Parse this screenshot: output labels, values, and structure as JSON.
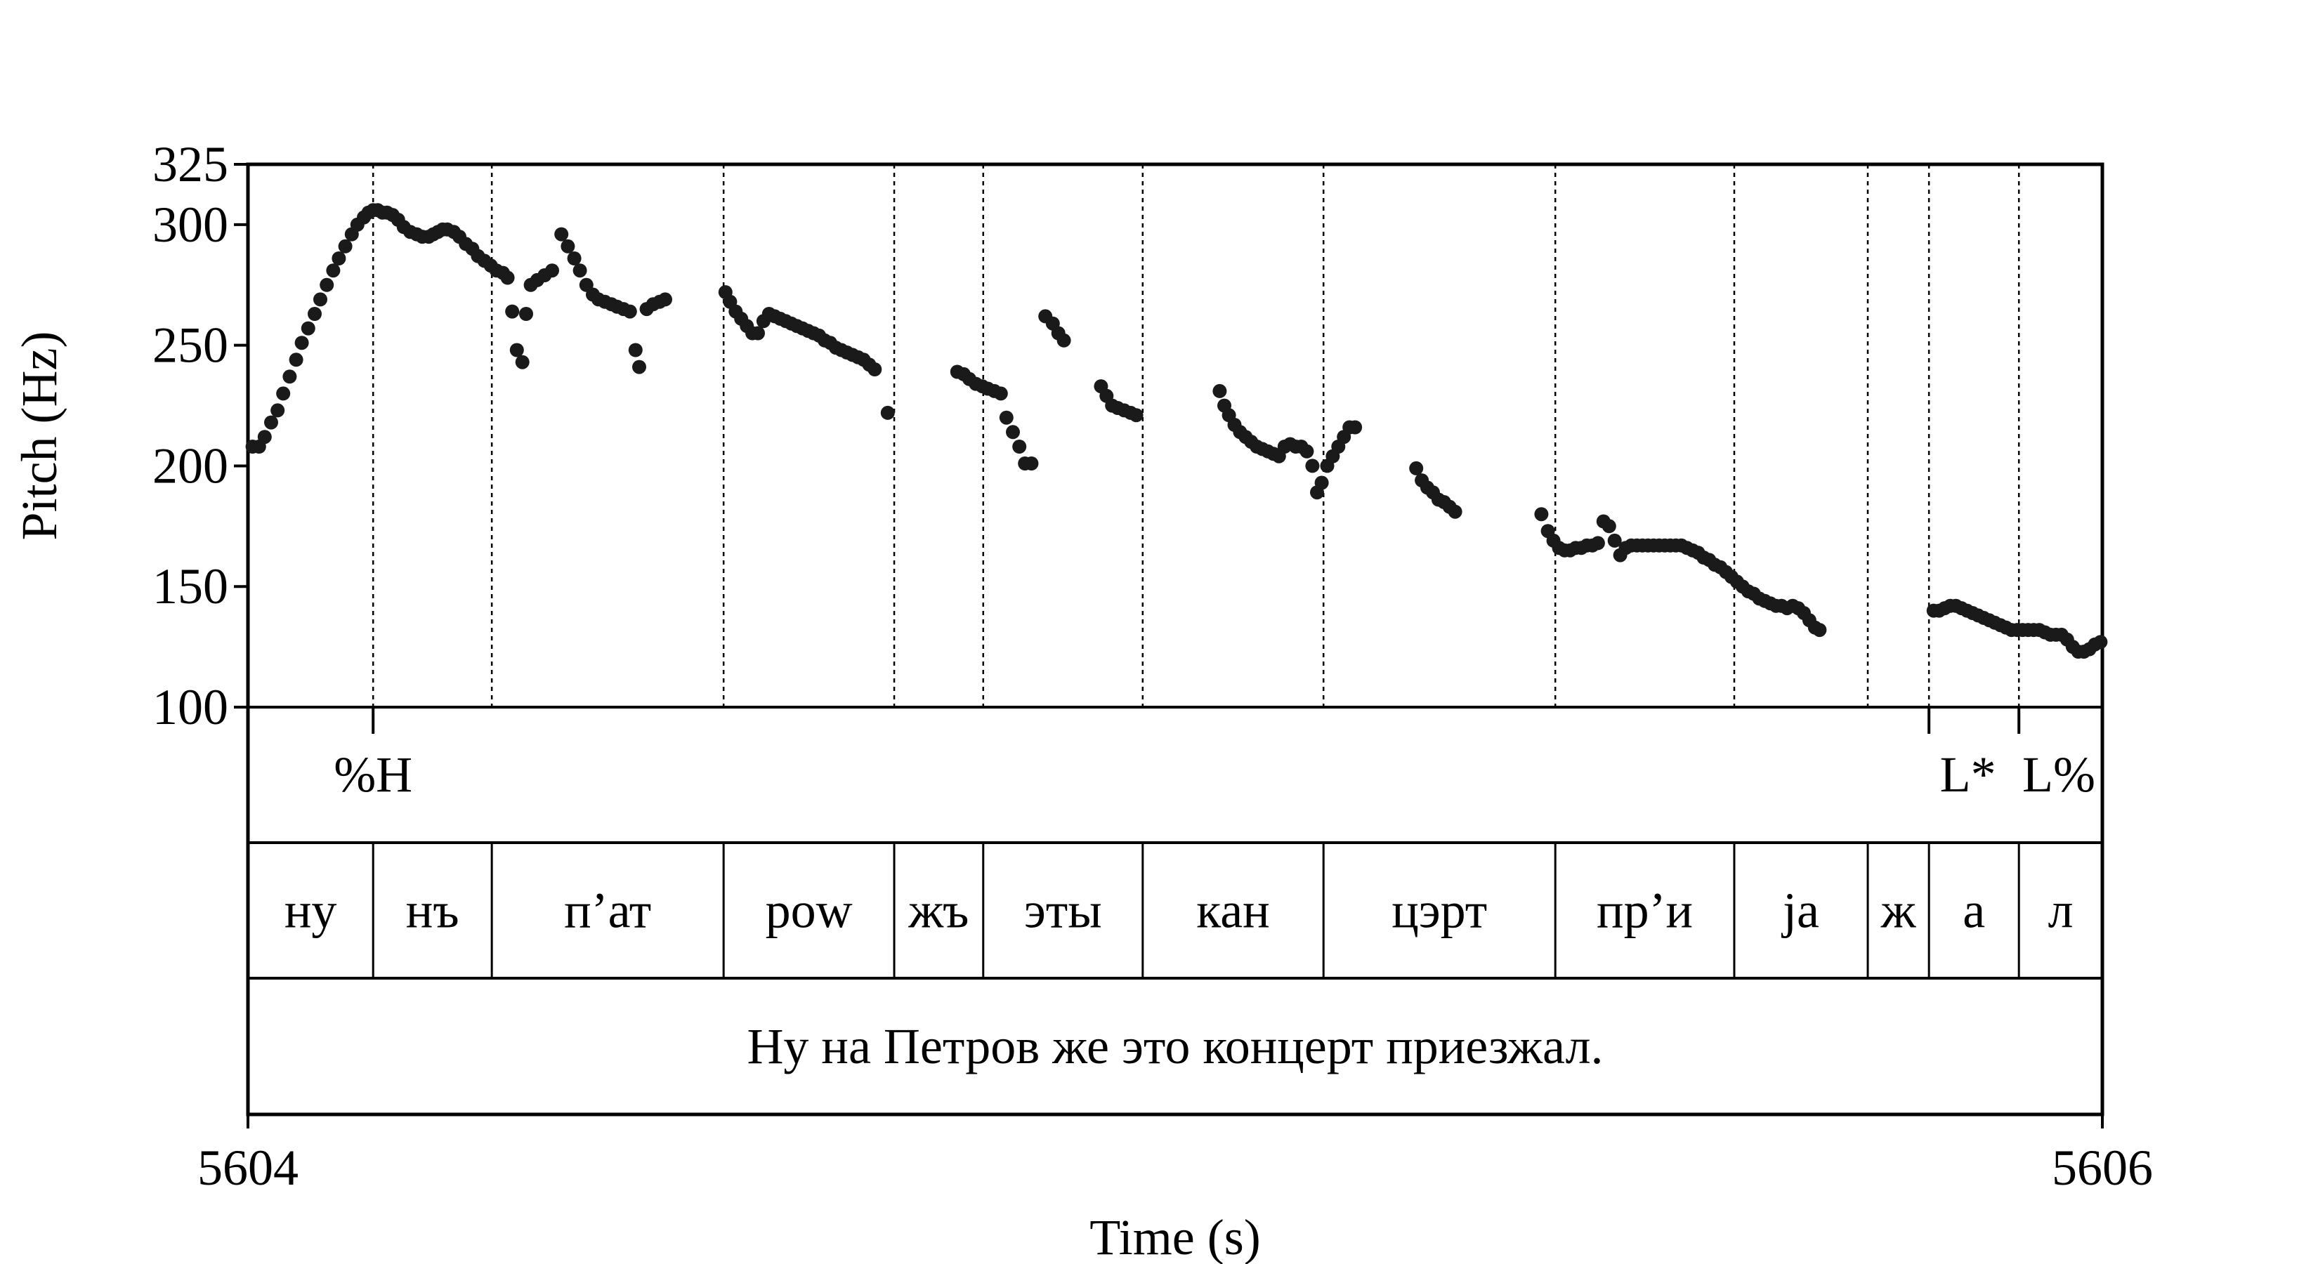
{
  "chart_data": {
    "type": "scatter",
    "xlabel": "Time (s)",
    "ylabel": "Pitch (Hz)",
    "xlim": [
      5604,
      5606
    ],
    "ylim": [
      100,
      325
    ],
    "x_ticks": [
      "5604",
      "5606"
    ],
    "y_ticks": [
      100,
      150,
      200,
      250,
      300,
      325
    ],
    "y_tick_labels": [
      "100",
      "150",
      "200",
      "250",
      "300",
      "325"
    ],
    "grid": false,
    "series": [
      {
        "points": [
          [
            5604.005,
            208
          ],
          [
            5604.012,
            208
          ],
          [
            5604.018,
            212
          ],
          [
            5604.025,
            218
          ],
          [
            5604.032,
            223
          ],
          [
            5604.038,
            230
          ],
          [
            5604.045,
            237
          ],
          [
            5604.052,
            244
          ],
          [
            5604.058,
            251
          ],
          [
            5604.065,
            257
          ],
          [
            5604.072,
            263
          ],
          [
            5604.078,
            269
          ],
          [
            5604.085,
            275
          ],
          [
            5604.092,
            281
          ],
          [
            5604.098,
            286
          ],
          [
            5604.105,
            291
          ],
          [
            5604.112,
            296
          ],
          [
            5604.118,
            300
          ],
          [
            5604.125,
            303
          ],
          [
            5604.13,
            305
          ],
          [
            5604.135,
            306
          ],
          [
            5604.14,
            306
          ],
          [
            5604.145,
            305
          ],
          [
            5604.15,
            305
          ],
          [
            5604.156,
            304
          ],
          [
            5604.162,
            302
          ],
          [
            5604.168,
            299
          ],
          [
            5604.175,
            297
          ],
          [
            5604.182,
            296
          ],
          [
            5604.188,
            295
          ],
          [
            5604.195,
            295
          ],
          [
            5604.2,
            296
          ],
          [
            5604.205,
            297
          ],
          [
            5604.21,
            298
          ],
          [
            5604.215,
            298
          ],
          [
            5604.222,
            297
          ],
          [
            5604.228,
            295
          ],
          [
            5604.235,
            292
          ],
          [
            5604.242,
            290
          ],
          [
            5604.248,
            287
          ],
          [
            5604.255,
            285
          ],
          [
            5604.262,
            283
          ],
          [
            5604.268,
            281
          ],
          [
            5604.275,
            280
          ],
          [
            5604.28,
            278
          ],
          [
            5604.285,
            264
          ],
          [
            5604.29,
            248
          ],
          [
            5604.296,
            243
          ],
          [
            5604.3,
            263
          ],
          [
            5604.305,
            275
          ],
          [
            5604.312,
            277
          ],
          [
            5604.32,
            279
          ],
          [
            5604.328,
            281
          ],
          [
            5604.338,
            296
          ],
          [
            5604.345,
            291
          ],
          [
            5604.352,
            286
          ],
          [
            5604.358,
            281
          ],
          [
            5604.365,
            275
          ],
          [
            5604.372,
            271
          ],
          [
            5604.378,
            269
          ],
          [
            5604.385,
            268
          ],
          [
            5604.392,
            267
          ],
          [
            5604.398,
            266
          ],
          [
            5604.405,
            265
          ],
          [
            5604.412,
            264
          ],
          [
            5604.418,
            248
          ],
          [
            5604.422,
            241
          ],
          [
            5604.43,
            265
          ],
          [
            5604.437,
            267
          ],
          [
            5604.444,
            268
          ],
          [
            5604.45,
            269
          ],
          [
            5604.515,
            272
          ],
          [
            5604.52,
            268
          ],
          [
            5604.526,
            264
          ],
          [
            5604.532,
            261
          ],
          [
            5604.538,
            258
          ],
          [
            5604.544,
            255
          ],
          [
            5604.55,
            255
          ],
          [
            5604.556,
            260
          ],
          [
            5604.562,
            263
          ],
          [
            5604.568,
            262
          ],
          [
            5604.574,
            261
          ],
          [
            5604.58,
            260
          ],
          [
            5604.586,
            259
          ],
          [
            5604.592,
            258
          ],
          [
            5604.598,
            257
          ],
          [
            5604.604,
            256
          ],
          [
            5604.61,
            255
          ],
          [
            5604.616,
            254
          ],
          [
            5604.622,
            252
          ],
          [
            5604.628,
            251
          ],
          [
            5604.634,
            249
          ],
          [
            5604.64,
            248
          ],
          [
            5604.646,
            247
          ],
          [
            5604.652,
            246
          ],
          [
            5604.658,
            245
          ],
          [
            5604.664,
            244
          ],
          [
            5604.67,
            242
          ],
          [
            5604.676,
            240
          ],
          [
            5604.69,
            222
          ],
          [
            5604.765,
            239
          ],
          [
            5604.772,
            238
          ],
          [
            5604.778,
            236
          ],
          [
            5604.785,
            234
          ],
          [
            5604.792,
            233
          ],
          [
            5604.798,
            232
          ],
          [
            5604.805,
            231
          ],
          [
            5604.812,
            230
          ],
          [
            5604.818,
            220
          ],
          [
            5604.825,
            214
          ],
          [
            5604.832,
            208
          ],
          [
            5604.838,
            201
          ],
          [
            5604.845,
            201
          ],
          [
            5604.86,
            262
          ],
          [
            5604.868,
            259
          ],
          [
            5604.874,
            255
          ],
          [
            5604.88,
            252
          ],
          [
            5604.92,
            233
          ],
          [
            5604.926,
            229
          ],
          [
            5604.932,
            225
          ],
          [
            5604.938,
            224
          ],
          [
            5604.945,
            223
          ],
          [
            5604.952,
            222
          ],
          [
            5604.958,
            221
          ],
          [
            5605.048,
            231
          ],
          [
            5605.053,
            225
          ],
          [
            5605.058,
            221
          ],
          [
            5605.064,
            217
          ],
          [
            5605.07,
            214
          ],
          [
            5605.076,
            212
          ],
          [
            5605.082,
            210
          ],
          [
            5605.088,
            208
          ],
          [
            5605.094,
            207
          ],
          [
            5605.1,
            206
          ],
          [
            5605.106,
            205
          ],
          [
            5605.112,
            204
          ],
          [
            5605.118,
            208
          ],
          [
            5605.124,
            209
          ],
          [
            5605.13,
            208
          ],
          [
            5605.136,
            208
          ],
          [
            5605.142,
            206
          ],
          [
            5605.148,
            200
          ],
          [
            5605.153,
            189
          ],
          [
            5605.158,
            193
          ],
          [
            5605.164,
            200
          ],
          [
            5605.17,
            204
          ],
          [
            5605.176,
            208
          ],
          [
            5605.182,
            212
          ],
          [
            5605.188,
            216
          ],
          [
            5605.194,
            216
          ],
          [
            5605.26,
            199
          ],
          [
            5605.266,
            194
          ],
          [
            5605.272,
            191
          ],
          [
            5605.278,
            189
          ],
          [
            5605.284,
            186
          ],
          [
            5605.29,
            185
          ],
          [
            5605.296,
            183
          ],
          [
            5605.302,
            181
          ],
          [
            5605.395,
            180
          ],
          [
            5605.402,
            173
          ],
          [
            5605.408,
            169
          ],
          [
            5605.414,
            166
          ],
          [
            5605.42,
            165
          ],
          [
            5605.426,
            165
          ],
          [
            5605.432,
            166
          ],
          [
            5605.438,
            166
          ],
          [
            5605.444,
            167
          ],
          [
            5605.45,
            167
          ],
          [
            5605.456,
            168
          ],
          [
            5605.462,
            177
          ],
          [
            5605.468,
            175
          ],
          [
            5605.474,
            169
          ],
          [
            5605.48,
            163
          ],
          [
            5605.486,
            166
          ],
          [
            5605.492,
            167
          ],
          [
            5605.498,
            167
          ],
          [
            5605.504,
            167
          ],
          [
            5605.51,
            167
          ],
          [
            5605.516,
            167
          ],
          [
            5605.522,
            167
          ],
          [
            5605.528,
            167
          ],
          [
            5605.534,
            167
          ],
          [
            5605.54,
            167
          ],
          [
            5605.546,
            167
          ],
          [
            5605.552,
            166
          ],
          [
            5605.558,
            165
          ],
          [
            5605.564,
            164
          ],
          [
            5605.57,
            162
          ],
          [
            5605.576,
            161
          ],
          [
            5605.582,
            159
          ],
          [
            5605.588,
            158
          ],
          [
            5605.594,
            156
          ],
          [
            5605.6,
            154
          ],
          [
            5605.606,
            152
          ],
          [
            5605.612,
            150
          ],
          [
            5605.618,
            148
          ],
          [
            5605.624,
            147
          ],
          [
            5605.63,
            145
          ],
          [
            5605.636,
            144
          ],
          [
            5605.642,
            143
          ],
          [
            5605.648,
            142
          ],
          [
            5605.654,
            142
          ],
          [
            5605.66,
            141
          ],
          [
            5605.666,
            142
          ],
          [
            5605.672,
            141
          ],
          [
            5605.678,
            139
          ],
          [
            5605.684,
            136
          ],
          [
            5605.69,
            133
          ],
          [
            5605.695,
            132
          ],
          [
            5605.818,
            140
          ],
          [
            5605.824,
            140
          ],
          [
            5605.83,
            141
          ],
          [
            5605.836,
            142
          ],
          [
            5605.842,
            142
          ],
          [
            5605.848,
            141
          ],
          [
            5605.854,
            140
          ],
          [
            5605.86,
            139
          ],
          [
            5605.866,
            138
          ],
          [
            5605.872,
            137
          ],
          [
            5605.878,
            136
          ],
          [
            5605.884,
            135
          ],
          [
            5605.89,
            134
          ],
          [
            5605.896,
            133
          ],
          [
            5605.902,
            132
          ],
          [
            5605.908,
            132
          ],
          [
            5605.914,
            132
          ],
          [
            5605.92,
            132
          ],
          [
            5605.926,
            132
          ],
          [
            5605.932,
            132
          ],
          [
            5605.938,
            131
          ],
          [
            5605.944,
            130
          ],
          [
            5605.95,
            130
          ],
          [
            5605.956,
            130
          ],
          [
            5605.962,
            128
          ],
          [
            5605.968,
            125
          ],
          [
            5605.974,
            123
          ],
          [
            5605.98,
            123
          ],
          [
            5605.986,
            124
          ],
          [
            5605.992,
            126
          ],
          [
            5605.998,
            127
          ]
        ]
      }
    ],
    "tiers": {
      "tones": [
        {
          "time": 5604.135,
          "label": "%H"
        },
        {
          "time": 5605.855,
          "label": "L*"
        },
        {
          "time": 5605.953,
          "label": "L%"
        }
      ],
      "tone_marks": [
        5604.135,
        5605.813,
        5605.91
      ],
      "syllables": [
        {
          "start": 5604.0,
          "end": 5604.135,
          "label": "ну"
        },
        {
          "start": 5604.135,
          "end": 5604.263,
          "label": "нъ"
        },
        {
          "start": 5604.263,
          "end": 5604.513,
          "label": "п’ат"
        },
        {
          "start": 5604.513,
          "end": 5604.697,
          "label": "pow"
        },
        {
          "start": 5604.697,
          "end": 5604.793,
          "label": "жъ"
        },
        {
          "start": 5604.793,
          "end": 5604.965,
          "label": "эты"
        },
        {
          "start": 5604.965,
          "end": 5605.16,
          "label": "кан"
        },
        {
          "start": 5605.16,
          "end": 5605.41,
          "label": "цэрт"
        },
        {
          "start": 5605.41,
          "end": 5605.603,
          "label": "пр’и"
        },
        {
          "start": 5605.603,
          "end": 5605.747,
          "label": "ja"
        },
        {
          "start": 5605.747,
          "end": 5605.813,
          "label": "ж"
        },
        {
          "start": 5605.813,
          "end": 5605.91,
          "label": "а"
        },
        {
          "start": 5605.91,
          "end": 5606.0,
          "label": "л"
        }
      ],
      "sentence": "Ну на Петров же это концерт приезжал."
    }
  }
}
